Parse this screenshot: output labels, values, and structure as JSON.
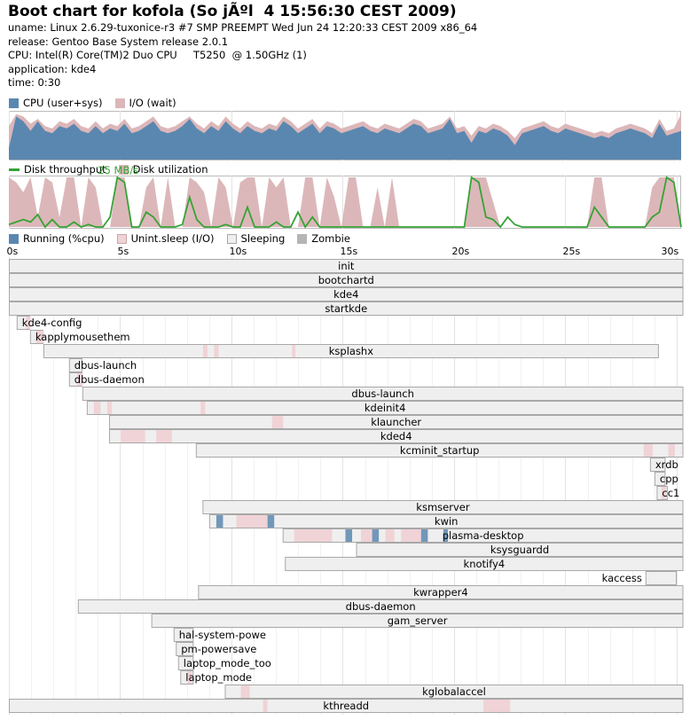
{
  "header": {
    "title": "Boot chart for kofola (So jÃºl  4 15:56:30 CEST 2009)",
    "uname": "uname: Linux 2.6.29-tuxonice-r3 #7 SMP PREEMPT Wed Jun 24 12:20:33 CEST 2009 x86_64",
    "release": "release: Gentoo Base System release 2.0.1",
    "cpu": "CPU: Intel(R) Core(TM)2 Duo CPU     T5250  @ 1.50GHz (1)",
    "application": "application: kde4",
    "time": "time: 0:30"
  },
  "colors": {
    "cpu": "#5a87b0",
    "io": "#dcb7b9",
    "throughput": "#36a336",
    "running": "#5a87b0",
    "unint": "#f0d3d6",
    "sleeping": "#efefef",
    "zombie": "#b5b5b5",
    "grid": "#e3e3e3",
    "box_border": "#a8a8a8"
  },
  "legends": {
    "cpu": [
      {
        "label": "CPU (user+sys)",
        "color": "#5a87b0"
      },
      {
        "label": "I/O (wait)",
        "color": "#dcb7b9"
      }
    ],
    "disk": [
      {
        "label": "Disk throughput",
        "color": "#36a336",
        "kind": "line"
      },
      {
        "label": "Disk utilization",
        "color": "#dcb7b9"
      }
    ],
    "process": [
      {
        "label": "Running (%cpu)",
        "color": "#5a87b0"
      },
      {
        "label": "Unint.sleep (I/O)",
        "color": "#f0d3d6"
      },
      {
        "label": "Sleeping",
        "color": "#efefef"
      },
      {
        "label": "Zombie",
        "color": "#b5b5b5"
      }
    ]
  },
  "chart_data": [
    {
      "type": "area",
      "series": [
        {
          "name": "CPU (user+sys)",
          "values": [
            25,
            90,
            80,
            60,
            80,
            60,
            55,
            70,
            65,
            75,
            60,
            55,
            70,
            55,
            65,
            60,
            75,
            55,
            60,
            70,
            80,
            60,
            55,
            60,
            70,
            85,
            65,
            55,
            70,
            60,
            80,
            65,
            55,
            70,
            60,
            55,
            65,
            60,
            80,
            70,
            55,
            65,
            75,
            55,
            70,
            65,
            55,
            60,
            65,
            70,
            60,
            55,
            65,
            60,
            55,
            65,
            75,
            70,
            55,
            60,
            65,
            85,
            55,
            60,
            35,
            60,
            55,
            65,
            60,
            50,
            30,
            55,
            60,
            65,
            70,
            60,
            55,
            65,
            60,
            55,
            50,
            45,
            50,
            45,
            55,
            60,
            65,
            60,
            55,
            45,
            75,
            50,
            55,
            60
          ]
        },
        {
          "name": "I/O (wait)",
          "values": [
            70,
            95,
            90,
            75,
            85,
            70,
            65,
            80,
            75,
            85,
            70,
            65,
            80,
            65,
            75,
            70,
            85,
            65,
            70,
            80,
            90,
            70,
            65,
            70,
            80,
            90,
            75,
            65,
            80,
            70,
            90,
            75,
            65,
            80,
            70,
            65,
            75,
            70,
            90,
            80,
            65,
            75,
            85,
            65,
            80,
            75,
            65,
            70,
            75,
            80,
            70,
            65,
            75,
            70,
            65,
            75,
            85,
            80,
            65,
            70,
            75,
            90,
            65,
            70,
            50,
            70,
            65,
            75,
            70,
            60,
            45,
            65,
            70,
            75,
            80,
            70,
            65,
            75,
            70,
            65,
            60,
            55,
            60,
            55,
            65,
            70,
            75,
            70,
            65,
            55,
            85,
            60,
            65,
            95
          ]
        }
      ]
    },
    {
      "type": "area",
      "y_max_label": "25 MB/s",
      "series": [
        {
          "name": "Disk utilization",
          "values": [
            100,
            90,
            70,
            100,
            20,
            100,
            90,
            20,
            100,
            100,
            0,
            100,
            80,
            0,
            0,
            100,
            100,
            0,
            0,
            80,
            100,
            0,
            100,
            0,
            0,
            100,
            90,
            70,
            0,
            100,
            80,
            0,
            90,
            100,
            100,
            0,
            100,
            80,
            100,
            0,
            0,
            100,
            100,
            0,
            100,
            60,
            0,
            100,
            100,
            0,
            0,
            80,
            0,
            100,
            0,
            0,
            0,
            0,
            0,
            0,
            0,
            0,
            0,
            0,
            100,
            100,
            100,
            50,
            0,
            0,
            0,
            0,
            0,
            0,
            0,
            0,
            0,
            0,
            0,
            0,
            0,
            100,
            100,
            0,
            0,
            0,
            0,
            0,
            0,
            80,
            100,
            100,
            100,
            0
          ]
        },
        {
          "name": "Disk throughput",
          "values": [
            5,
            10,
            15,
            10,
            25,
            0,
            15,
            0,
            0,
            10,
            0,
            5,
            0,
            0,
            20,
            100,
            90,
            0,
            0,
            30,
            20,
            0,
            0,
            0,
            5,
            60,
            15,
            0,
            0,
            0,
            5,
            0,
            0,
            40,
            0,
            0,
            0,
            10,
            0,
            0,
            30,
            0,
            20,
            0,
            0,
            0,
            0,
            0,
            0,
            0,
            0,
            0,
            0,
            0,
            0,
            0,
            0,
            0,
            0,
            0,
            0,
            0,
            0,
            0,
            100,
            90,
            20,
            15,
            0,
            20,
            5,
            0,
            0,
            0,
            0,
            0,
            0,
            0,
            0,
            0,
            0,
            40,
            20,
            0,
            0,
            0,
            0,
            0,
            0,
            20,
            30,
            100,
            90,
            0
          ]
        }
      ]
    },
    {
      "type": "gantt",
      "x_unit": "s",
      "xlim": [
        0,
        30.2
      ],
      "ticks": [
        "0s",
        "5s",
        "10s",
        "15s",
        "20s",
        "25s",
        "30s"
      ],
      "processes": [
        {
          "name": "init",
          "start": 0,
          "end": 30.3
        },
        {
          "name": "bootchartd",
          "start": 0,
          "end": 30.3
        },
        {
          "name": "kde4",
          "start": 0,
          "end": 30.3
        },
        {
          "name": "startkde",
          "start": 0,
          "end": 30.3
        },
        {
          "name": "kde4-config",
          "start": 0.35,
          "end": 0.95,
          "io": [
            [
              0.75,
              0.95
            ]
          ]
        },
        {
          "name": "kapplymousethem",
          "start": 0.95,
          "end": 1.55,
          "io": [
            [
              1.2,
              1.55
            ]
          ]
        },
        {
          "name": "ksplashx",
          "start": 1.55,
          "end": 29.2,
          "io": [
            [
              8.7,
              8.9
            ],
            [
              9.2,
              9.4
            ],
            [
              12.7,
              12.85
            ]
          ]
        },
        {
          "name": "dbus-launch",
          "start": 2.7,
          "end": 3.3
        },
        {
          "name": "dbus-daemon",
          "start": 2.7,
          "end": 3.3,
          "io": [
            [
              3.05,
              3.3
            ]
          ]
        },
        {
          "name": "dbus-launch",
          "start": 3.3,
          "end": 30.3
        },
        {
          "name": "kdeinit4",
          "start": 3.5,
          "end": 30.3,
          "io": [
            [
              3.8,
              4.1
            ],
            [
              4.4,
              4.6
            ],
            [
              8.6,
              8.8
            ]
          ]
        },
        {
          "name": "klauncher",
          "start": 4.5,
          "end": 30.3,
          "io": [
            [
              11.8,
              12.3
            ]
          ]
        },
        {
          "name": "kded4",
          "start": 4.5,
          "end": 30.3,
          "io": [
            [
              5.0,
              6.1
            ],
            [
              6.6,
              7.3
            ]
          ]
        },
        {
          "name": "kcminit_startup",
          "start": 8.4,
          "end": 30.3,
          "io": [
            [
              28.5,
              28.9
            ],
            [
              29.6,
              29.9
            ]
          ]
        },
        {
          "name": "xrdb",
          "start": 28.8,
          "end": 29.5
        },
        {
          "name": "cpp",
          "start": 29.0,
          "end": 29.5
        },
        {
          "name": "cc1",
          "start": 29.1,
          "end": 29.6,
          "io": [
            [
              29.3,
              29.5
            ]
          ]
        },
        {
          "name": "ksmserver",
          "start": 8.7,
          "end": 30.3
        },
        {
          "name": "kwin",
          "start": 9.0,
          "end": 30.3,
          "io": [
            [
              10.2,
              11.6
            ]
          ],
          "cpu": [
            [
              11.6,
              11.9
            ],
            [
              9.3,
              9.6
            ]
          ]
        },
        {
          "name": "plasma-desktop",
          "start": 12.3,
          "end": 30.3,
          "io": [
            [
              12.8,
              14.5
            ],
            [
              15.8,
              16.3
            ],
            [
              16.9,
              17.3
            ],
            [
              17.6,
              18.5
            ]
          ],
          "cpu": [
            [
              15.1,
              15.4
            ],
            [
              16.3,
              16.6
            ],
            [
              18.5,
              18.8
            ],
            [
              19.5,
              19.7
            ]
          ]
        },
        {
          "name": "ksysguardd",
          "start": 15.6,
          "end": 30.3
        },
        {
          "name": "knotify4",
          "start": 12.4,
          "end": 30.3
        },
        {
          "name": "kaccess",
          "start": 28.6,
          "end": 30.0
        },
        {
          "name": "kwrapper4",
          "start": 8.5,
          "end": 30.3
        },
        {
          "name": "dbus-daemon",
          "start": 3.1,
          "end": 30.3
        },
        {
          "name": "gam_server",
          "start": 6.4,
          "end": 30.3
        },
        {
          "name": "hal-system-powe",
          "start": 7.4,
          "end": 8.3
        },
        {
          "name": "pm-powersave",
          "start": 7.5,
          "end": 8.3
        },
        {
          "name": "laptop_mode_too",
          "start": 7.6,
          "end": 8.3
        },
        {
          "name": "laptop_mode",
          "start": 7.7,
          "end": 8.3,
          "io": [
            [
              8.0,
              8.2
            ]
          ]
        },
        {
          "name": "kglobalaccel",
          "start": 9.7,
          "end": 30.3,
          "io": [
            [
              10.4,
              10.8
            ]
          ]
        },
        {
          "name": "kthreadd",
          "start": 0,
          "end": 30.3,
          "io": [
            [
              21.3,
              22.5
            ],
            [
              11.4,
              11.6
            ]
          ]
        }
      ]
    }
  ]
}
